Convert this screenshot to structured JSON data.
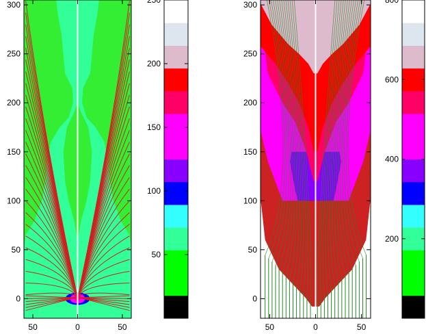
{
  "chart_data": [
    {
      "type": "heatmap",
      "panel": "left",
      "xlim": [
        -60,
        60
      ],
      "ylim": [
        -20,
        305
      ],
      "x_ticks": [
        -50,
        0,
        50
      ],
      "x_tick_labels": [
        "50",
        "0",
        "50"
      ],
      "y_ticks": [
        0,
        50,
        100,
        150,
        200,
        250,
        300
      ],
      "y_tick_labels": [
        "0",
        "50",
        "100",
        "150",
        "200",
        "250",
        "300"
      ],
      "background_color": "#33ee33",
      "region_color": "#33ff99",
      "line_color": "#cc2222",
      "source_colors": [
        "#ff00ff",
        "#ff0066",
        "#0000ff"
      ]
    },
    {
      "type": "colorbar",
      "panel": "left-colorbar",
      "range": [
        0,
        250
      ],
      "tick_values": [
        50,
        100,
        150,
        200,
        250
      ],
      "tick_labels": [
        "50",
        "100",
        "150",
        "200",
        "250"
      ],
      "colors": [
        "#000000",
        "#00ff00",
        "#00ff00",
        "#33ff99",
        "#33ffff",
        "#0000ff",
        "#8800ff",
        "#ff00ff",
        "#ff00ff",
        "#ff0066",
        "#ff0000",
        "#ddbbcc",
        "#dde6ee",
        "#ffffff"
      ]
    },
    {
      "type": "heatmap",
      "panel": "right",
      "xlim": [
        -60,
        60
      ],
      "ylim": [
        -20,
        305
      ],
      "x_ticks": [
        -50,
        0,
        50
      ],
      "x_tick_labels": [
        "50",
        "0",
        "50"
      ],
      "y_ticks": [
        0,
        50,
        100,
        150,
        200,
        250,
        300
      ],
      "y_tick_labels": [
        "0",
        "50",
        "100",
        "150",
        "200",
        "250",
        "300"
      ],
      "line_color": "#228822",
      "level_colors": [
        "#ffffff",
        "#33ff99",
        "#33ffff",
        "#0000ff",
        "#8800ff",
        "#cc2222",
        "#ff00ff",
        "#ff0066",
        "#ff0000",
        "#ddbbcc"
      ]
    },
    {
      "type": "colorbar",
      "panel": "right-colorbar",
      "range": [
        0,
        800
      ],
      "tick_values": [
        200,
        400,
        600,
        800
      ],
      "tick_labels": [
        "200",
        "400",
        "600",
        "800"
      ],
      "colors": [
        "#000000",
        "#00ff00",
        "#00ff00",
        "#33ff99",
        "#33ffff",
        "#0000ff",
        "#8800ff",
        "#ff00ff",
        "#ff00ff",
        "#ff0066",
        "#ff0000",
        "#ddbbcc",
        "#dde6ee",
        "#ffffff"
      ]
    }
  ]
}
